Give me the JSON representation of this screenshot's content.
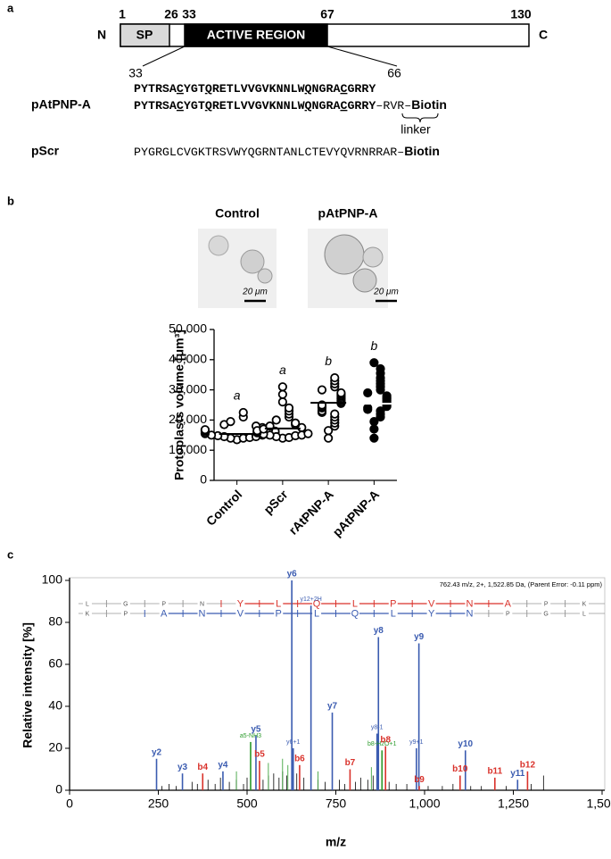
{
  "panel_a": {
    "label": "a",
    "terminal_n": "N",
    "terminal_c": "C",
    "positions": [
      "1",
      "26",
      "33",
      "67",
      "130"
    ],
    "signal_peptide": "SP",
    "active_region": "ACTIVE REGION",
    "peptide_start": "33",
    "peptide_end": "66",
    "reference_sequence": [
      "PYTRSA",
      "C",
      "YGT",
      "Q",
      "RETLVVGVKNNLW",
      "Q",
      "NGRA",
      "C",
      "GRRY"
    ],
    "peptides": [
      {
        "name": "pAtPNP-A",
        "sequence": [
          "PYTRSA",
          "C",
          "YGT",
          "Q",
          "RETLVVGVKNNLW",
          "Q",
          "NGRA",
          "C",
          "GRRY"
        ],
        "linker": "–RVR–",
        "tag": "Biotin"
      },
      {
        "name": "pScr",
        "sequence": [
          "PYGRGLCVGKTRSVWYQGRNTANLCTEVYQVRNRRAR"
        ],
        "linker": "–",
        "tag": "Biotin"
      }
    ],
    "linker_label": "linker"
  },
  "panel_b": {
    "label": "b",
    "micrographs": [
      {
        "title": "Control",
        "scale_bar": "20 μm"
      },
      {
        "title": "pAtPNP-A",
        "scale_bar": "20 μm"
      }
    ]
  },
  "panel_c": {
    "label": "c"
  },
  "chart_data": [
    {
      "type": "dotplot",
      "ylabel": "Protoplasts volume [μm³]",
      "categories": [
        "Control",
        "pScr",
        "rAtPNP-A",
        "pAtPNP-A"
      ],
      "points": [
        [
          13500,
          14000,
          14000,
          14200,
          14500,
          14500,
          14800,
          15000,
          15000,
          15200,
          15500,
          15500,
          15800,
          16000,
          16000,
          16300,
          16500,
          16800,
          17000,
          17500,
          18000,
          18500,
          19500,
          21000,
          22500
        ],
        [
          14000,
          14200,
          14500,
          14800,
          15000,
          15000,
          15300,
          15500,
          15800,
          16000,
          16200,
          16500,
          17000,
          17500,
          18000,
          18500,
          19000,
          20000,
          21000,
          22000,
          23000,
          24000,
          26000,
          28500,
          31000
        ],
        [
          14000,
          16500,
          18000,
          19000,
          20000,
          21000,
          22000,
          22500,
          23000,
          24000,
          24500,
          25000,
          25500,
          26000,
          26500,
          27000,
          27500,
          28000,
          28500,
          29000,
          30000,
          31000,
          32000,
          33000,
          34000
        ],
        [
          14000,
          17000,
          19500,
          21000,
          22000,
          23000,
          23500,
          24000,
          24500,
          25000,
          25500,
          26000,
          26500,
          27000,
          27500,
          28000,
          29000,
          30000,
          31000,
          32000,
          33000,
          34000,
          35500,
          37000,
          39000
        ]
      ],
      "means": [
        15400,
        17200,
        25700,
        25400
      ],
      "significance": [
        "a",
        "a",
        "b",
        "b"
      ],
      "filled": [
        false,
        false,
        false,
        true
      ],
      "color": "#000000",
      "ylim": [
        0,
        50000
      ],
      "yticks": [
        0,
        {
          "value": 10000,
          "label": "10,000"
        },
        {
          "value": 20000,
          "label": "20,000"
        },
        {
          "value": 30000,
          "label": "30,000"
        },
        {
          "value": 40000,
          "label": "40,000"
        },
        {
          "value": 50000,
          "label": "50,000"
        }
      ]
    },
    {
      "type": "spectrum",
      "header": "762.43 m/z, 2+, 1,522.85 Da, (Parent Error: -0.11 ppm)",
      "xlabel": "m/z",
      "ylabel": "Relative intensity [%]",
      "xlim": [
        0,
        1500
      ],
      "xticks": [
        0,
        250,
        500,
        750,
        {
          "value": 1000,
          "label": "1,000"
        },
        {
          "value": 1250,
          "label": "1,250"
        },
        {
          "value": 1500,
          "label": "1,500"
        }
      ],
      "ylim": [
        0,
        100
      ],
      "yticks": [
        0,
        20,
        40,
        60,
        80,
        100
      ],
      "ladder": [
        {
          "residues": [
            "L",
            "G",
            "P",
            "N",
            "Y",
            "L",
            "Q",
            "L",
            "P",
            "V",
            "N",
            "A",
            "P",
            "K"
          ],
          "matched": [
            false,
            false,
            false,
            false,
            true,
            true,
            true,
            true,
            true,
            true,
            true,
            true,
            false,
            false
          ],
          "color": "#d9322b"
        },
        {
          "residues": [
            "K",
            "P",
            "A",
            "N",
            "V",
            "P",
            "L",
            "Q",
            "L",
            "Y",
            "N",
            "P",
            "G",
            "L"
          ],
          "matched": [
            false,
            false,
            true,
            true,
            true,
            true,
            true,
            true,
            true,
            true,
            true,
            false,
            false,
            false
          ],
          "color": "#3a5bb0"
        }
      ],
      "series": [
        {
          "color": "#3a5bb0",
          "x": [
            245,
            318,
            432,
            525,
            626,
            630,
            680,
            740,
            866,
            870,
            977,
            984,
            1115,
            1262
          ],
          "values": [
            15,
            8,
            9,
            26,
            100,
            20,
            88,
            37,
            27,
            73,
            20,
            70,
            19,
            5
          ],
          "labels": [
            "y2",
            "y3",
            "y4",
            "y5",
            "y6",
            "y6+1",
            "y12+2H",
            "y7",
            "y8-1",
            "y8",
            "y9+1",
            "y9",
            "y10",
            "y11"
          ]
        },
        {
          "color": "#d9322b",
          "x": [
            375,
            535,
            648,
            790,
            890,
            985,
            1100,
            1198,
            1290
          ],
          "values": [
            8,
            14,
            12,
            10,
            21,
            2,
            7,
            6,
            9
          ],
          "labels": [
            "b4",
            "b5",
            "b6",
            "b7",
            "b8",
            "b9",
            "b10",
            "b11",
            "b12"
          ]
        },
        {
          "color": "#2a9a2a",
          "x": [
            510,
            880,
            470,
            560,
            600,
            615,
            700,
            850
          ],
          "values": [
            23,
            19,
            9,
            13,
            15,
            12,
            9,
            11
          ],
          "labels": [
            "a5-NH3",
            "b8-H2O+1",
            null,
            null,
            null,
            null,
            null,
            null
          ]
        },
        {
          "color": "#000000",
          "x": [
            260,
            280,
            300,
            345,
            360,
            390,
            410,
            425,
            450,
            470,
            490,
            500,
            545,
            560,
            575,
            590,
            600,
            612,
            640,
            660,
            700,
            720,
            760,
            775,
            805,
            820,
            840,
            855,
            900,
            920,
            950,
            1010,
            1050,
            1080,
            1130,
            1160,
            1230,
            1300,
            1335
          ],
          "values": [
            2,
            3,
            2,
            4,
            3,
            5,
            3,
            6,
            4,
            5,
            3,
            6,
            5,
            7,
            8,
            6,
            9,
            7,
            8,
            6,
            5,
            4,
            5,
            3,
            4,
            6,
            5,
            7,
            4,
            3,
            3,
            2,
            2,
            3,
            2,
            2,
            2,
            3,
            7
          ]
        }
      ]
    }
  ]
}
